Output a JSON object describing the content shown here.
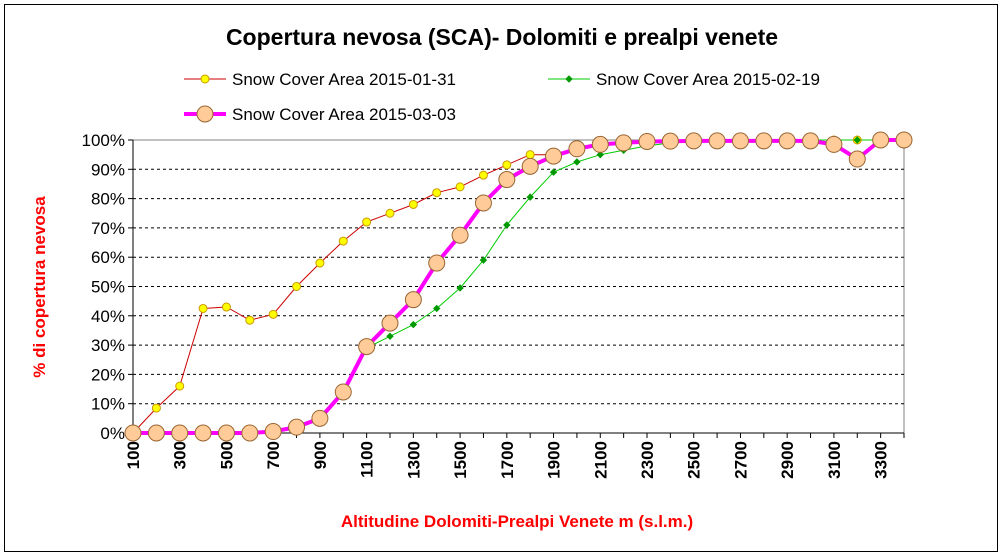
{
  "chart_data": {
    "type": "line",
    "title": "Copertura nevosa (SCA)- Dolomiti e prealpi venete",
    "xlabel": "Altitudine Dolomiti-Prealpi Venete m (s.l.m.)",
    "ylabel": "% di copertura nevosa",
    "x": [
      100,
      200,
      300,
      400,
      500,
      600,
      700,
      800,
      900,
      1000,
      1100,
      1200,
      1300,
      1400,
      1500,
      1600,
      1700,
      1800,
      1900,
      2000,
      2100,
      2200,
      2300,
      2400,
      2500,
      2600,
      2700,
      2800,
      2900,
      3000,
      3100,
      3200,
      3300,
      3400
    ],
    "x_tick_labels": [
      "100",
      "300",
      "500",
      "700",
      "900",
      "1100",
      "1300",
      "1500",
      "1700",
      "1900",
      "2100",
      "2300",
      "2500",
      "2700",
      "2900",
      "3100",
      "3300"
    ],
    "y_tick_labels": [
      "0%",
      "10%",
      "20%",
      "30%",
      "40%",
      "50%",
      "60%",
      "70%",
      "80%",
      "90%",
      "100%"
    ],
    "ylim": [
      0,
      100
    ],
    "grid": "horizontal dashed",
    "legend_position": "top",
    "series": [
      {
        "name": "Snow Cover Area 2015-01-31",
        "color": "#cc0000",
        "marker_fill": "#ffff00",
        "marker_stroke": "#cc9900",
        "marker": "circle-small",
        "values": [
          0,
          8.5,
          16,
          42.5,
          43,
          38.5,
          40.5,
          50,
          58,
          65.5,
          72,
          75,
          78,
          82,
          84,
          88,
          91.5,
          95,
          95,
          97,
          98,
          99,
          99.5,
          99.7,
          99.8,
          99.9,
          100,
          100,
          100,
          100,
          100,
          100,
          100,
          100
        ]
      },
      {
        "name": "Snow Cover Area 2015-02-19",
        "color": "#00cc00",
        "marker_fill": "#009900",
        "marker_stroke": "#009900",
        "marker": "diamond",
        "values": [
          0,
          0,
          0,
          0,
          0,
          0,
          0.5,
          1.5,
          4.5,
          14,
          29,
          33,
          37,
          42.5,
          49.5,
          59,
          71,
          80.5,
          89,
          92.5,
          95,
          96.5,
          98,
          99,
          99.5,
          99.7,
          100,
          100,
          100,
          100,
          100,
          100,
          100,
          100
        ]
      },
      {
        "name": "Snow Cover Area 2015-03-03",
        "color": "#ff00ff",
        "marker_fill": "#ffcc99",
        "marker_stroke": "#996633",
        "marker": "circle-large",
        "values": [
          0,
          0,
          0,
          0,
          0,
          0,
          0.5,
          2,
          5,
          14,
          29.5,
          37.5,
          45.5,
          58,
          67.5,
          78.5,
          86.5,
          91,
          94.5,
          97,
          98.5,
          99,
          99.5,
          99.6,
          99.7,
          99.7,
          99.7,
          99.7,
          99.7,
          99.7,
          98.5,
          93.5,
          100,
          100
        ]
      }
    ]
  }
}
